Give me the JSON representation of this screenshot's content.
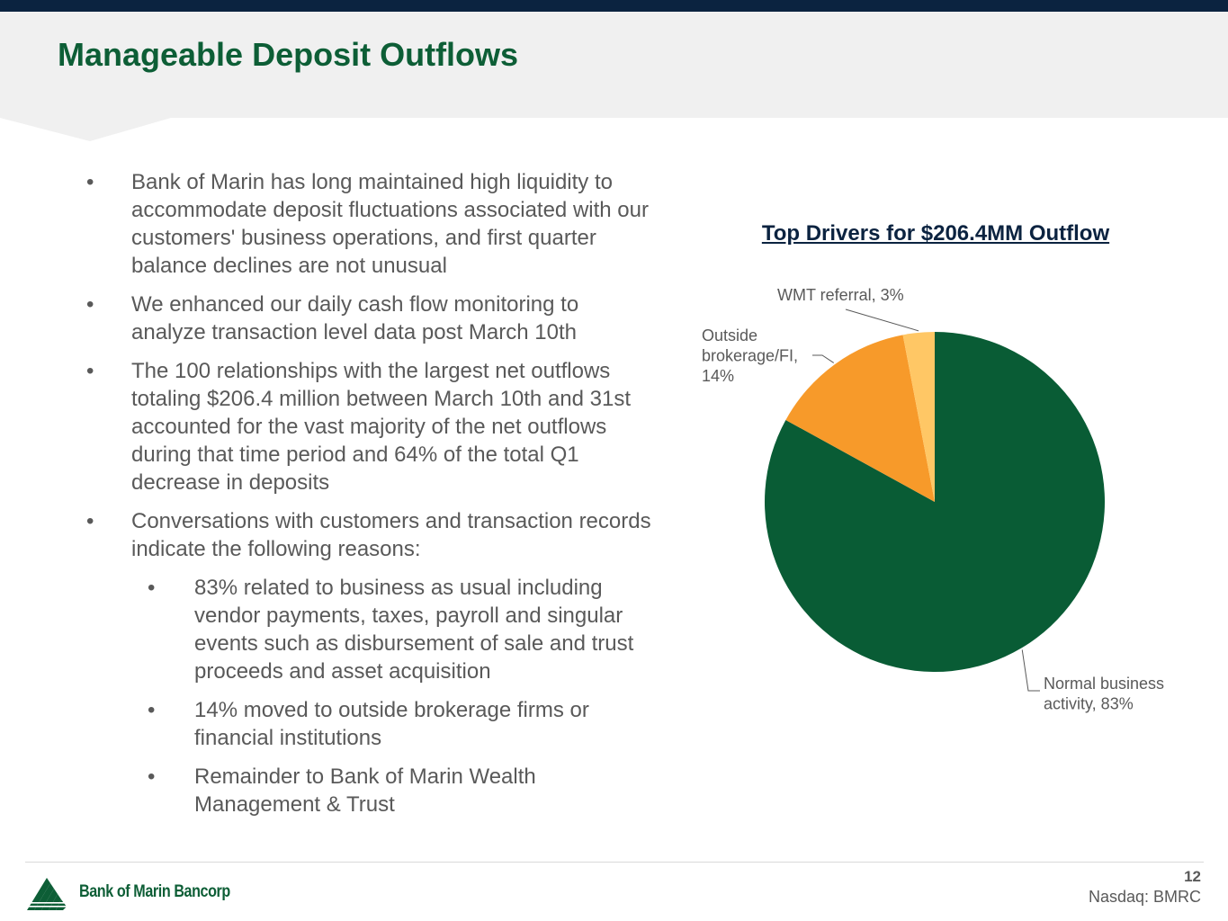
{
  "header": {
    "title": "Manageable Deposit Outflows"
  },
  "bullets": [
    "Bank of Marin has long maintained high liquidity to accommodate deposit fluctuations associated with our customers' business operations, and first quarter balance declines are not unusual",
    "We enhanced our daily cash flow monitoring to analyze transaction level data post March 10th",
    "The 100 relationships with the largest net outflows totaling $206.4 million between March 10th and 31st accounted for the vast majority of the net outflows during that time period and 64% of the total Q1 decrease in deposits",
    "Conversations with customers and transaction records indicate the following reasons:"
  ],
  "sub_bullets": [
    "83% related to business as usual including vendor payments, taxes, payroll and singular events such as disbursement of sale and trust proceeds and asset acquisition",
    "14% moved to outside brokerage firms or financial institutions",
    "Remainder to Bank of Marin Wealth Management & Trust"
  ],
  "bullet_symbol": "•",
  "chart_data": {
    "type": "pie",
    "title": "Top Drivers for $206.4MM Outflow",
    "slices": [
      {
        "name": "Normal business activity",
        "value": 83,
        "color": "#095c35",
        "label_lines": [
          "Normal business",
          "activity, 83%"
        ]
      },
      {
        "name": "Outside brokerage/FI",
        "value": 14,
        "color": "#f79a2a",
        "label_lines": [
          "Outside",
          "brokerage/FI,",
          "14%"
        ]
      },
      {
        "name": "WMT referral",
        "value": 3,
        "color": "#ffc765",
        "label_lines": [
          "WMT referral, 3%"
        ]
      }
    ]
  },
  "footer": {
    "logo_text": "Bank of Marin Bancorp",
    "page_number": "12",
    "ticker": "Nasdaq: BMRC"
  },
  "colors": {
    "top_bar": "#0b2340",
    "title_green": "#0d5e36",
    "header_band": "#f0f0f0"
  }
}
